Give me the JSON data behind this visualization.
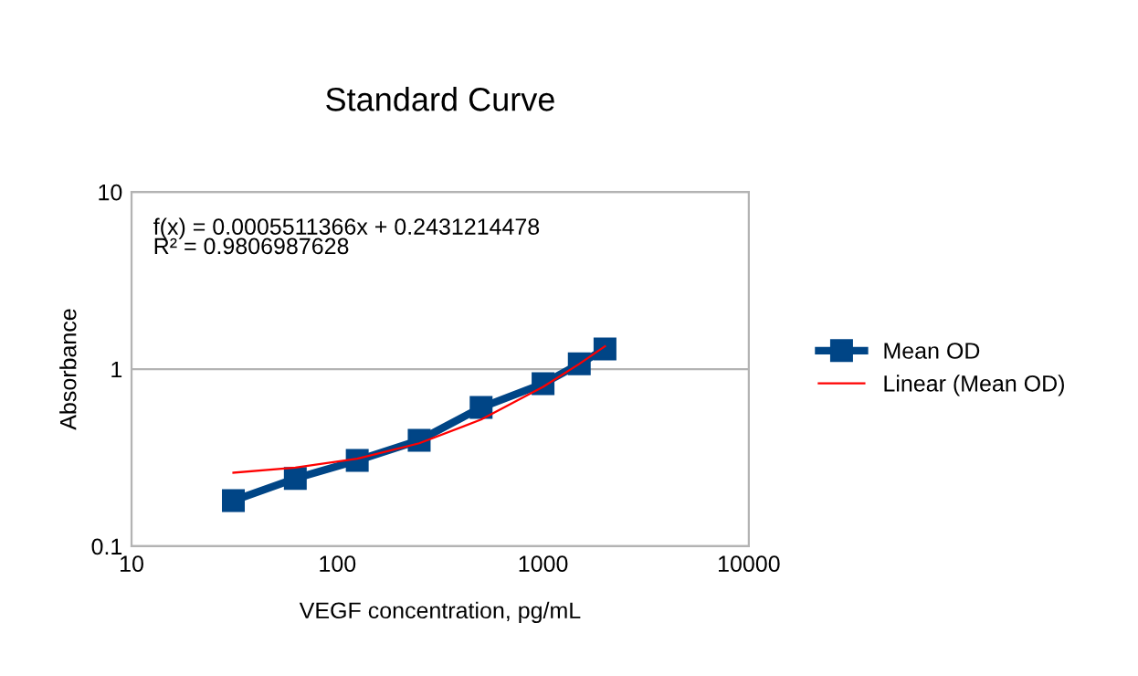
{
  "chart_data": {
    "type": "line",
    "title": "Standard Curve",
    "xlabel": "VEGF concentration, pg/mL",
    "ylabel": "Absorbance",
    "log": "xy",
    "grid": "y",
    "legend": "right",
    "xlim": [
      10,
      10000
    ],
    "xticks": [
      10,
      100,
      1000,
      10000
    ],
    "ylim": [
      0.1,
      10
    ],
    "yticks": [
      0.1,
      1,
      10
    ],
    "annotations": [
      "f(x) = 0.0005511366x + 0.2431214478",
      "R² = 0.9806987628"
    ],
    "series": [
      {
        "name": "Mean OD",
        "color": "#004586",
        "marker": "square",
        "line_style": "solid",
        "x": [
          31.25,
          62.5,
          125,
          250,
          500,
          1000,
          1500,
          2000
        ],
        "values": [
          0.181,
          0.241,
          0.305,
          0.396,
          0.607,
          0.827,
          1.07,
          1.3
        ]
      },
      {
        "name": "Linear (Mean OD)",
        "color": "#ff0000",
        "marker": "none",
        "line_style": "solid",
        "x": [
          31.25,
          62.5,
          125,
          250,
          500,
          1000,
          1500,
          2000
        ],
        "values": [
          0.26,
          0.278,
          0.312,
          0.381,
          0.519,
          0.794,
          1.07,
          1.345
        ]
      }
    ]
  }
}
